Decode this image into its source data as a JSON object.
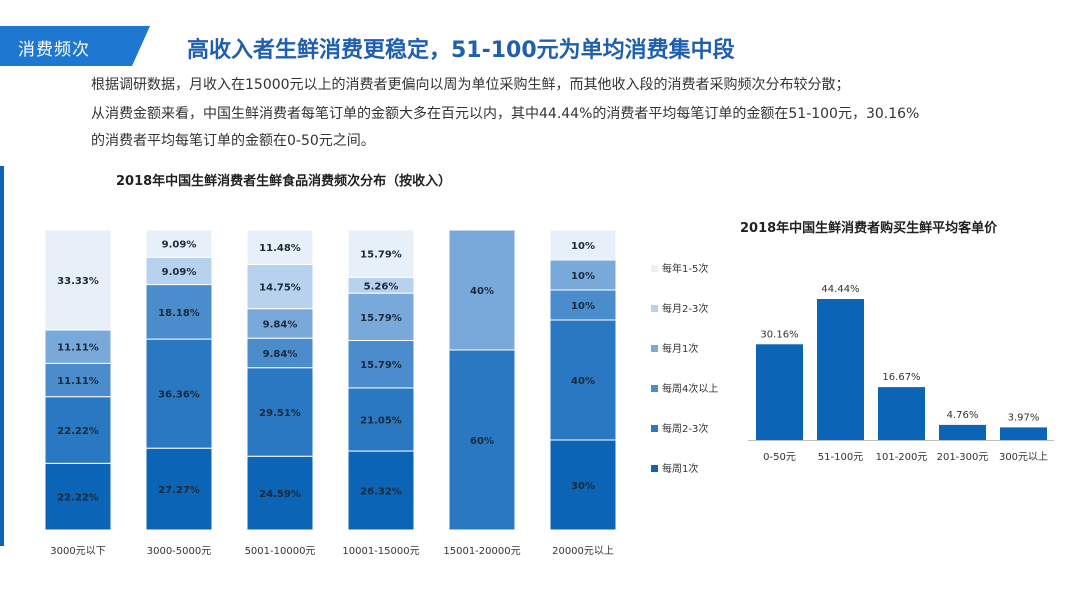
{
  "header": {
    "section_tag": "消费频次",
    "title": "高收入者生鲜消费更稳定，51-100元为单均消费集中段"
  },
  "description": {
    "line1": "根据调研数据，月收入在15000元以上的消费者更偏向以周为单位采购生鲜，而其他收入段的消费者采购频次分布较分散；",
    "line2": "从消费金额来看，中国生鲜消费者每笔订单的金额大多在百元以内，其中44.44%的消费者平均每笔订单的金额在51-100元，30.16%",
    "line3": "的消费者平均每笔订单的金额在0-50元之间。"
  },
  "colors": {
    "accent": "#1f5fae",
    "tag_bg": "#1e78d2",
    "weekly1": "#0c64b6",
    "weekly2_3": "#2a78c2",
    "weekly4plus": "#4a8ccc",
    "monthly1": "#79a9db",
    "monthly2_3": "#b7d2ee",
    "yearly1_5": "#e7f0f9",
    "bar_blue": "#0c64b6"
  },
  "chart_data": [
    {
      "type": "stacked_bar_100",
      "title": "2018年中国生鲜消费者生鲜食品消费频次分布（按收入）",
      "categories": [
        "3000元以下",
        "3000-5000元",
        "5001-10000元",
        "10001-15000元",
        "15001-20000元",
        "20000元以上"
      ],
      "series": [
        {
          "name": "每周1次",
          "color_key": "weekly1",
          "values": [
            22.22,
            27.27,
            24.59,
            26.32,
            0,
            30
          ],
          "labels": [
            "22.22%",
            "27.27%",
            "24.59%",
            "26.32%",
            "",
            "30%"
          ]
        },
        {
          "name": "每周2-3次",
          "color_key": "weekly2_3",
          "values": [
            22.22,
            36.36,
            29.51,
            21.05,
            60,
            40
          ],
          "labels": [
            "22.22%",
            "36.36%",
            "29.51%",
            "21.05%",
            "60%",
            "40%"
          ]
        },
        {
          "name": "每周4次以上",
          "color_key": "weekly4plus",
          "values": [
            11.11,
            18.18,
            9.84,
            15.79,
            0,
            10
          ],
          "labels": [
            "11.11%",
            "18.18%",
            "9.84%",
            "15.79%",
            "",
            "10%"
          ]
        },
        {
          "name": "每月1次",
          "color_key": "monthly1",
          "values": [
            11.11,
            0,
            9.84,
            15.79,
            40,
            10
          ],
          "labels": [
            "11.11%",
            "",
            "9.84%",
            "15.79%",
            "40%",
            "10%"
          ]
        },
        {
          "name": "每月2-3次",
          "color_key": "monthly2_3",
          "values": [
            0,
            9.09,
            14.75,
            5.26,
            0,
            0
          ],
          "labels": [
            "",
            "9.09%",
            "14.75%",
            "5.26%",
            "",
            ""
          ]
        },
        {
          "name": "每年1-5次",
          "color_key": "yearly1_5",
          "values": [
            33.33,
            9.09,
            11.48,
            15.79,
            0,
            10
          ],
          "labels": [
            "33.33%",
            "9.09%",
            "11.48%",
            "15.79%",
            "",
            "10%"
          ]
        }
      ],
      "legend_order": [
        "每年1-5次",
        "每月2-3次",
        "每月1次",
        "每周4次以上",
        "每周2-3次",
        "每周1次"
      ],
      "legend_position": "right",
      "ylim": [
        0,
        100
      ]
    },
    {
      "type": "bar",
      "title": "2018年中国生鲜消费者购买生鲜平均客单价",
      "categories": [
        "0-50元",
        "51-100元",
        "101-200元",
        "201-300元",
        "300元以上"
      ],
      "values": [
        30.16,
        44.44,
        16.67,
        4.76,
        3.97
      ],
      "labels": [
        "30.16%",
        "44.44%",
        "16.67%",
        "4.76%",
        "3.97%"
      ],
      "ylim": [
        0,
        44.44
      ]
    }
  ]
}
